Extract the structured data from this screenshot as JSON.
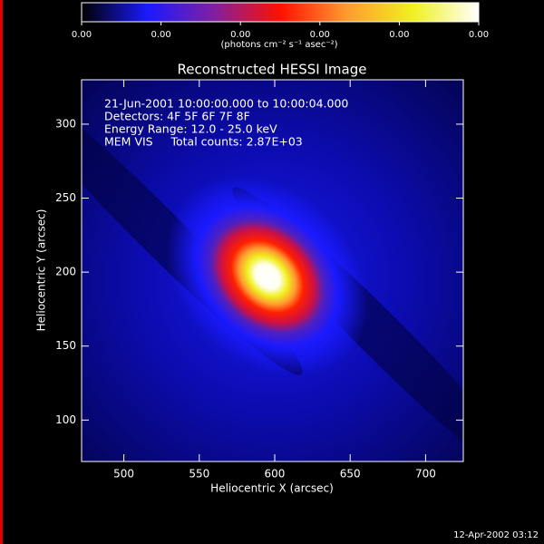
{
  "chart_data": {
    "type": "image",
    "title": "Reconstructed HESSI Image",
    "annotations": [
      "21-Jun-2001 10:00:00.000 to 10:00:04.000",
      "Detectors: 4F 5F 6F 7F 8F",
      "Energy Range: 12.0 - 25.0 keV",
      "MEM VIS     Total counts: 2.87E+03"
    ],
    "x_label": "Heliocentric X (arcsec)",
    "y_label": "Heliocentric Y (arcsec)",
    "xlim": [
      472,
      725
    ],
    "ylim": [
      72,
      330
    ],
    "xticks": [
      500,
      550,
      600,
      650,
      700
    ],
    "yticks": [
      100,
      150,
      200,
      250,
      300
    ],
    "colorbar_label": "(photons cm⁻² s⁻¹ asec⁻²)",
    "clim": [
      0,
      0.0025
    ],
    "colorbar_ticks": [
      {
        "value": 0,
        "label": "0.00"
      },
      {
        "value": 0.0005,
        "label": "0.00"
      },
      {
        "value": 0.001,
        "label": "0.00"
      },
      {
        "value": 0.0015,
        "label": "0.00"
      },
      {
        "value": 0.002,
        "label": "0.00"
      },
      {
        "value": 0.0025,
        "label": "0.00"
      }
    ],
    "colormap": [
      "#000000",
      "#1a1aff",
      "#8020a0",
      "#ff1000",
      "#ff9a30",
      "#f0f020",
      "#ffffff"
    ],
    "timestamp": "12-Apr-2002 03:12"
  }
}
